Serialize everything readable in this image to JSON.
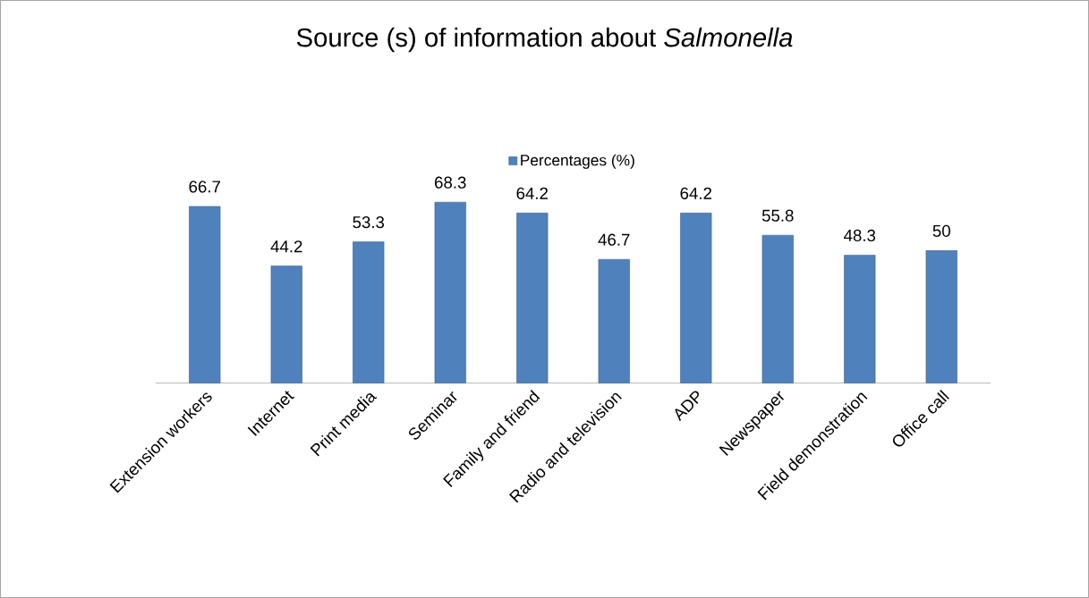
{
  "chart_data": {
    "type": "bar",
    "title": "Source (s) of information about *Salmonella*",
    "categories": [
      "Extension workers",
      "Internet",
      "Print media",
      "Seminar",
      "Family and friend",
      "Radio and television",
      "ADP",
      "Newspaper",
      "Field demonstration",
      "Office call"
    ],
    "series": [
      {
        "name": "Percentages (%)",
        "color": "#4f81bd",
        "values": [
          66.7,
          44.2,
          53.3,
          68.3,
          64.2,
          46.7,
          64.2,
          55.8,
          48.3,
          50
        ]
      }
    ],
    "data_labels": true,
    "legend": "top",
    "grid": false
  }
}
